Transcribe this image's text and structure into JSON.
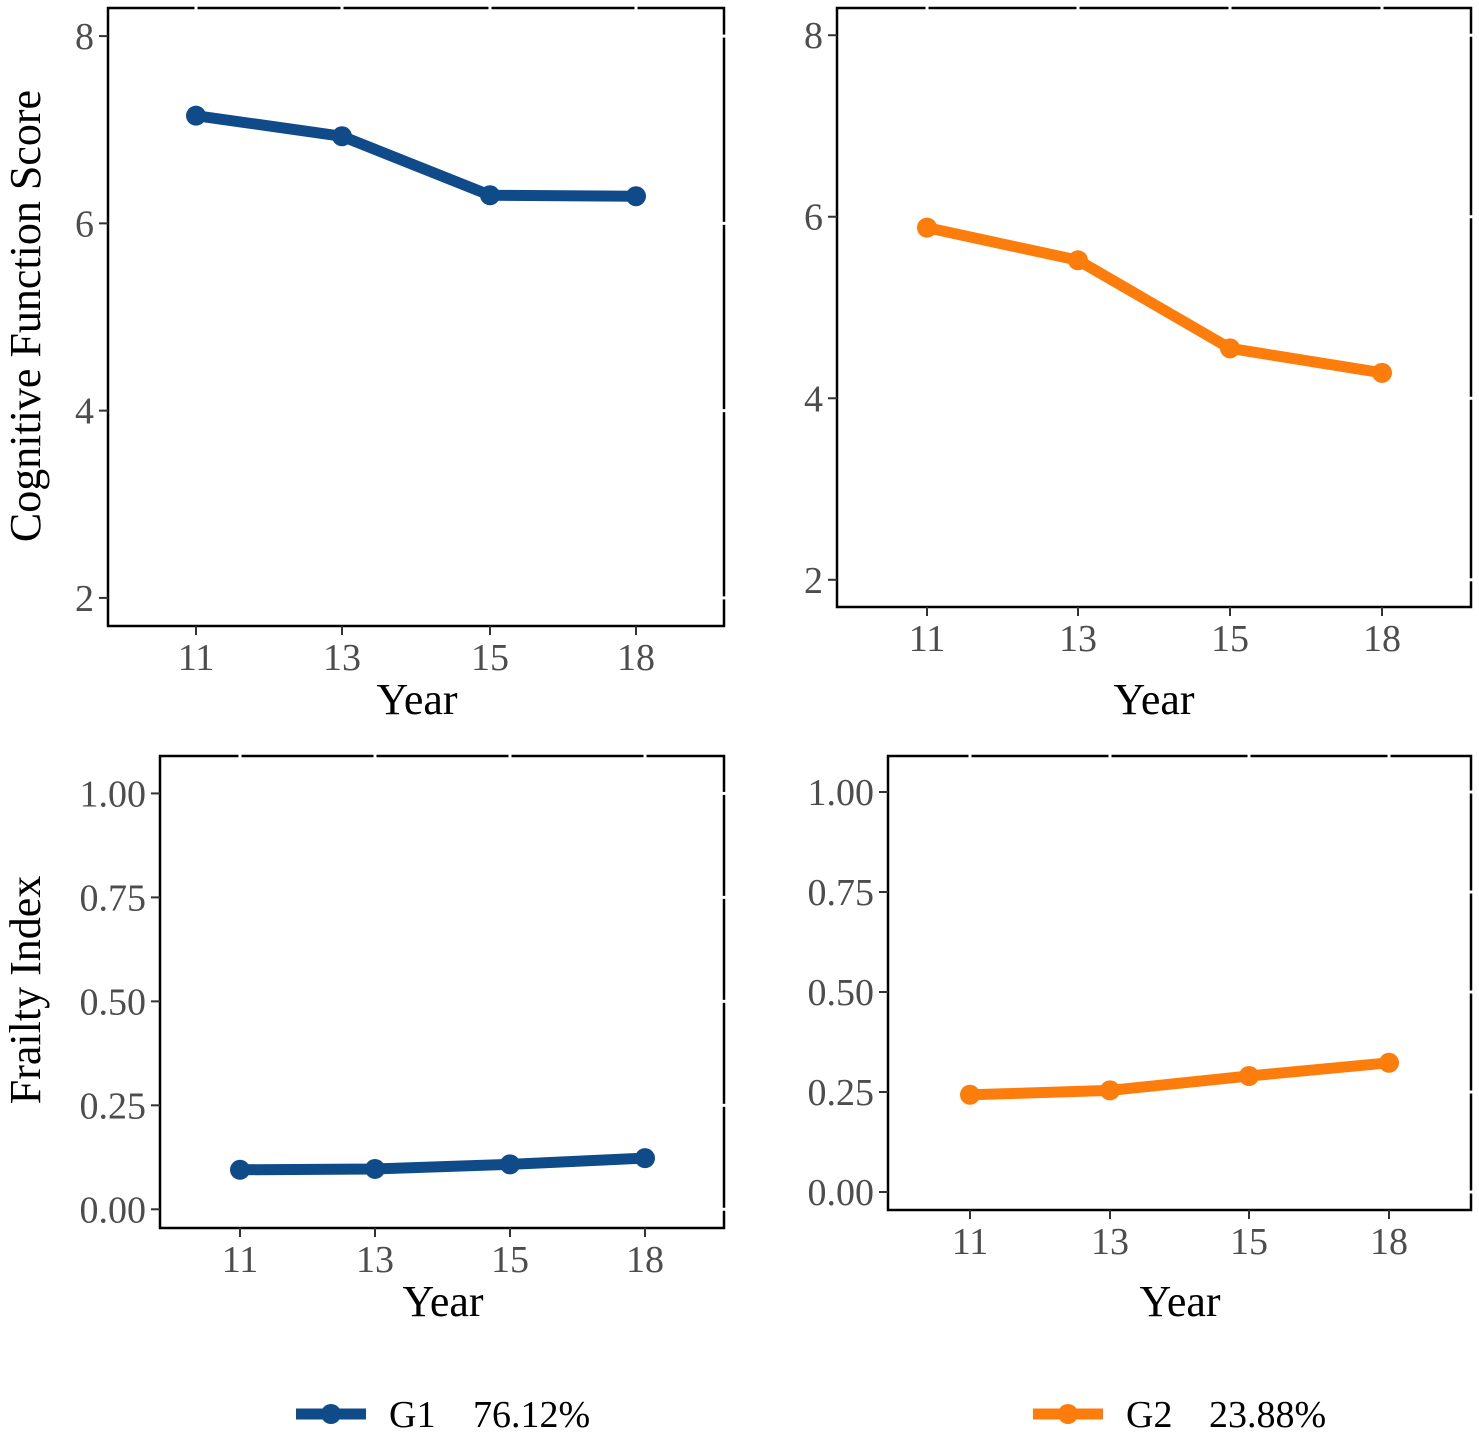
{
  "colors": {
    "G1": "#0f4a89",
    "G2": "#fc7d0b"
  },
  "legend": [
    {
      "key": "G1",
      "label": "G1",
      "percent": "76.12%"
    },
    {
      "key": "G2",
      "label": "G2",
      "percent": "23.88%"
    }
  ],
  "chart_data": [
    {
      "type": "line",
      "panel": "top-left",
      "series_key": "G1",
      "xlabel": "Year",
      "ylabel": "Cognitive Function Score",
      "categories": [
        "11",
        "13",
        "15",
        "18"
      ],
      "values": [
        7.15,
        6.93,
        6.3,
        6.29
      ],
      "ylim": [
        1.7,
        8.3
      ],
      "yticks": [
        2,
        4,
        6,
        8
      ],
      "ytick_labels": [
        "2",
        "4",
        "6",
        "8"
      ]
    },
    {
      "type": "line",
      "panel": "top-right",
      "series_key": "G2",
      "xlabel": "Year",
      "ylabel": "",
      "categories": [
        "11",
        "13",
        "15",
        "18"
      ],
      "values": [
        5.88,
        5.52,
        4.55,
        4.28
      ],
      "ylim": [
        1.7,
        8.3
      ],
      "yticks": [
        2,
        4,
        6,
        8
      ],
      "ytick_labels": [
        "2",
        "4",
        "6",
        "8"
      ]
    },
    {
      "type": "line",
      "panel": "bottom-left",
      "series_key": "G1",
      "xlabel": "Year",
      "ylabel": "Frailty Index",
      "categories": [
        "11",
        "13",
        "15",
        "18"
      ],
      "values": [
        0.095,
        0.097,
        0.108,
        0.123
      ],
      "ylim": [
        -0.045,
        1.09
      ],
      "yticks": [
        0,
        0.25,
        0.5,
        0.75,
        1.0
      ],
      "ytick_labels": [
        "0.00",
        "0.25",
        "0.50",
        "0.75",
        "1.00"
      ]
    },
    {
      "type": "line",
      "panel": "bottom-right",
      "series_key": "G2",
      "xlabel": "Year",
      "ylabel": "",
      "categories": [
        "11",
        "13",
        "15",
        "18"
      ],
      "values": [
        0.243,
        0.254,
        0.29,
        0.323
      ],
      "ylim": [
        -0.045,
        1.09
      ],
      "yticks": [
        0,
        0.25,
        0.5,
        0.75,
        1.0
      ],
      "ytick_labels": [
        "0.00",
        "0.25",
        "0.50",
        "0.75",
        "1.00"
      ]
    }
  ]
}
